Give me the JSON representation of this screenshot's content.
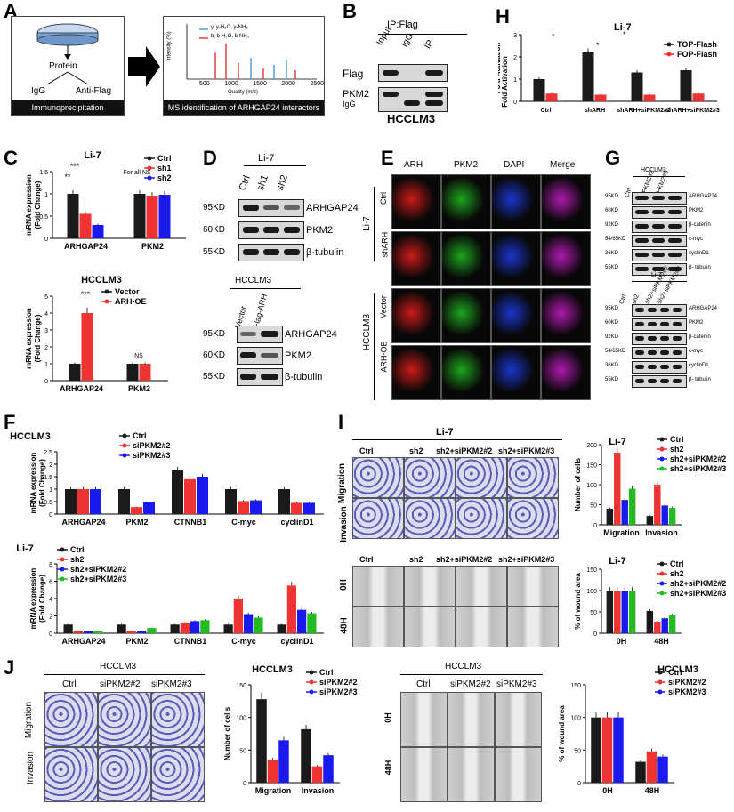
{
  "panels": {
    "A": "A",
    "B": "B",
    "C": "C",
    "D": "D",
    "E": "E",
    "F": "F",
    "G": "G",
    "H": "H",
    "I": "I",
    "J": "J"
  },
  "panelA": {
    "protein": "Protein",
    "igg": "IgG",
    "antiflag": "Anti-Flag",
    "ip_caption": "Immunoprecipitation",
    "ms_caption": "MS identification of ARHGAP24 interactors",
    "legend1": "y, y-H₂O, y-NH₃",
    "legend2": "b, b-H₂O, b-NH₃",
    "xlabel": "Quality (m/z)",
    "ylabel": "Intensity (%)",
    "xticks": [
      "500",
      "1000",
      "1500",
      "2000",
      "2500"
    ]
  },
  "panelB": {
    "title": "IP:Flag",
    "lanes": [
      "Input",
      "IgG",
      "IP"
    ],
    "rows": [
      "Flag",
      "PKM2",
      "IgG"
    ],
    "cell": "HCCLM3"
  },
  "panelC": {
    "top_title": "Li-7",
    "legend": [
      "Ctrl",
      "sh1",
      "sh2"
    ],
    "ylabel": "mRNA expression",
    "ylabel2": "(Fold Change)",
    "categories": [
      "ARHGAP24",
      "PKM2"
    ],
    "annot_sig": "***",
    "annot_sig2": "**",
    "annot_ns": "For all NS",
    "bottom_title": "HCCLM3",
    "legend2": [
      "Vector",
      "ARH-OE"
    ],
    "bottom_sig": "***",
    "bottom_ns": "NS"
  },
  "panelD": {
    "title": "Li-7",
    "lanes": [
      "Ctrl",
      "sh1",
      "sh2"
    ],
    "kd": [
      "95KD",
      "60KD",
      "55KD"
    ],
    "proteins": [
      "ARHGAP24",
      "PKM2",
      "β-tubulin"
    ],
    "title2": "HCCLM3",
    "lanes2": [
      "Vector",
      "Flag-ARH"
    ]
  },
  "panelE": {
    "cols": [
      "ARH",
      "PKM2",
      "DAPI",
      "Merge"
    ],
    "rows": [
      "Ctrl",
      "shARH",
      "Vector",
      "ARH-OE"
    ],
    "groups": [
      "Li-7",
      "HCCLM3"
    ]
  },
  "panelF": {
    "top_title": "HCCLM3",
    "legend_top": [
      "Ctrl",
      "siPKM2#2",
      "siPKM2#3"
    ],
    "categories": [
      "ARHGAP24",
      "PKM2",
      "CTNNB1",
      "C-myc",
      "cyclinD1"
    ],
    "ylabel": "mRNA expression",
    "ylabel2": "(Fold Change)",
    "bottom_title": "Li-7",
    "legend_bottom": [
      "Ctrl",
      "sh2",
      "sh2+siPKM2#2",
      "sh2+siPKM2#3"
    ]
  },
  "panelG": {
    "title1": "HCCLM3",
    "lanes1": [
      "Ctrl",
      "siPKM2#2",
      "siPKM2#3"
    ],
    "title2": "Li-7",
    "lanes2": [
      "Ctrl",
      "sh2",
      "sh2+siPKM2#2",
      "sh2+siPKM2#3"
    ],
    "kd": [
      "95KD",
      "60KD",
      "92KD",
      "54/65KD",
      "36KD",
      "55KD"
    ],
    "proteins": [
      "ARHGAP24",
      "PKM2",
      "β-catenin",
      "c-myc",
      "cyclinD1",
      "β- tubulin"
    ]
  },
  "panelH": {
    "title": "Li-7",
    "ylabel": "Fold Activation",
    "categories": [
      "Ctrl",
      "shARH",
      "shARH+siPKM2#2",
      "shARH+siPKM2#3"
    ],
    "legend": [
      "TOP-Flash",
      "FOP-Flash"
    ],
    "yticks": [
      "0",
      "1",
      "2",
      "3"
    ],
    "sig": "*"
  },
  "panelI": {
    "title": "Li-7",
    "cols": [
      "Ctrl",
      "sh2",
      "sh2+siPKM2#2",
      "sh2+siPKM2#3"
    ],
    "rows": [
      "Migration",
      "Invasion"
    ],
    "wound_rows": [
      "0H",
      "48H"
    ],
    "chart_title": "Li-7",
    "legend": [
      "Ctrl",
      "sh2",
      "sh2+siPKM2#2",
      "sh2+siPKM2#3"
    ]
  },
  "panelJ": {
    "title": "HCCLM3",
    "cols": [
      "Ctrl",
      "siPKM2#2",
      "siPKM2#3"
    ],
    "rows": [
      "Migration",
      "Invasion"
    ],
    "wound_rows": [
      "0H",
      "48H"
    ],
    "legend": [
      "Ctrl",
      "siPKM2#2",
      "siPKM2#3"
    ]
  },
  "colors": {
    "black": "#1a1a1a",
    "red": "#ee3333",
    "blue": "#1a1aee",
    "green": "#22bb22"
  },
  "chart_data": [
    {
      "type": "bar",
      "title": "Li-7",
      "categories": [
        "ARHGAP24",
        "PKM2"
      ],
      "ylabel": "mRNA expression (Fold Change)",
      "ylim": [
        0,
        1.5
      ],
      "series": [
        {
          "name": "Ctrl",
          "values": [
            1.0,
            1.0
          ]
        },
        {
          "name": "sh1",
          "values": [
            0.55,
            0.96
          ]
        },
        {
          "name": "sh2",
          "values": [
            0.3,
            0.98
          ]
        }
      ]
    },
    {
      "type": "bar",
      "title": "HCCLM3",
      "categories": [
        "ARHGAP24",
        "PKM2"
      ],
      "ylabel": "mRNA expression (Fold Change)",
      "ylim": [
        0,
        5
      ],
      "series": [
        {
          "name": "Vector",
          "values": [
            1.0,
            1.0
          ]
        },
        {
          "name": "ARH-OE",
          "values": [
            4.0,
            1.0
          ]
        }
      ]
    },
    {
      "type": "bar",
      "title": "Li-7",
      "categories": [
        "Ctrl",
        "shARH",
        "shARH+siPKM2#2",
        "shARH+siPKM2#3"
      ],
      "ylabel": "Fold Activation",
      "ylim": [
        0,
        3
      ],
      "series": [
        {
          "name": "TOP-Flash",
          "values": [
            1.0,
            2.2,
            1.3,
            1.4
          ]
        },
        {
          "name": "FOP-Flash",
          "values": [
            0.35,
            0.3,
            0.3,
            0.35
          ]
        }
      ]
    },
    {
      "type": "bar",
      "title": "HCCLM3",
      "categories": [
        "ARHGAP24",
        "PKM2",
        "CTNNB1",
        "C-myc",
        "cyclinD1"
      ],
      "ylabel": "mRNA expression (Fold Change)",
      "ylim": [
        0,
        2.5
      ],
      "series": [
        {
          "name": "Ctrl",
          "values": [
            1.0,
            1.0,
            1.75,
            1.0,
            1.0
          ]
        },
        {
          "name": "siPKM2#2",
          "values": [
            1.0,
            0.28,
            1.4,
            0.52,
            0.45
          ]
        },
        {
          "name": "siPKM2#3",
          "values": [
            1.0,
            0.5,
            1.5,
            0.55,
            0.45
          ]
        }
      ]
    },
    {
      "type": "bar",
      "title": "Li-7",
      "categories": [
        "ARHGAP24",
        "PKM2",
        "CTNNB1",
        "C-myc",
        "cyclinD1"
      ],
      "ylabel": "mRNA expression (Fold Change)",
      "ylim": [
        0,
        8
      ],
      "series": [
        {
          "name": "Ctrl",
          "values": [
            1.0,
            1.0,
            1.0,
            1.0,
            1.0
          ]
        },
        {
          "name": "sh2",
          "values": [
            0.3,
            0.3,
            1.2,
            4.0,
            5.5
          ]
        },
        {
          "name": "sh2+siPKM2#2",
          "values": [
            0.3,
            0.3,
            1.4,
            2.2,
            2.7
          ]
        },
        {
          "name": "sh2+siPKM2#3",
          "values": [
            0.3,
            0.6,
            1.5,
            1.8,
            2.3
          ]
        }
      ]
    },
    {
      "type": "bar",
      "title": "Li-7",
      "categories": [
        "Migration",
        "Invasion"
      ],
      "ylabel": "Number of cells",
      "ylim": [
        0,
        200
      ],
      "series": [
        {
          "name": "Ctrl",
          "values": [
            40,
            22
          ]
        },
        {
          "name": "sh2",
          "values": [
            180,
            100
          ]
        },
        {
          "name": "sh2+siPKM2#2",
          "values": [
            62,
            48
          ]
        },
        {
          "name": "sh2+siPKM2#3",
          "values": [
            90,
            42
          ]
        }
      ]
    },
    {
      "type": "bar",
      "title": "Li-7",
      "categories": [
        "0H",
        "48H"
      ],
      "ylabel": "% of wound area",
      "ylim": [
        0,
        150
      ],
      "series": [
        {
          "name": "Ctrl",
          "values": [
            100,
            52
          ]
        },
        {
          "name": "sh2",
          "values": [
            100,
            27
          ]
        },
        {
          "name": "sh2+siPKM2#2",
          "values": [
            100,
            35
          ]
        },
        {
          "name": "sh2+siPKM2#3",
          "values": [
            100,
            42
          ]
        }
      ]
    },
    {
      "type": "bar",
      "title": "HCCLM3",
      "categories": [
        "Migration",
        "Invasion"
      ],
      "ylabel": "Number of cells",
      "ylim": [
        0,
        150
      ],
      "series": [
        {
          "name": "Ctrl",
          "values": [
            128,
            82
          ]
        },
        {
          "name": "siPKM2#2",
          "values": [
            35,
            25
          ]
        },
        {
          "name": "siPKM2#3",
          "values": [
            65,
            42
          ]
        }
      ]
    },
    {
      "type": "bar",
      "title": "HCCLM3",
      "categories": [
        "0H",
        "48H"
      ],
      "ylabel": "% of wound area",
      "ylim": [
        0,
        150
      ],
      "series": [
        {
          "name": "Ctrl",
          "values": [
            100,
            32
          ]
        },
        {
          "name": "siPKM2#2",
          "values": [
            100,
            48
          ]
        },
        {
          "name": "siPKM2#3",
          "values": [
            100,
            40
          ]
        }
      ]
    }
  ]
}
